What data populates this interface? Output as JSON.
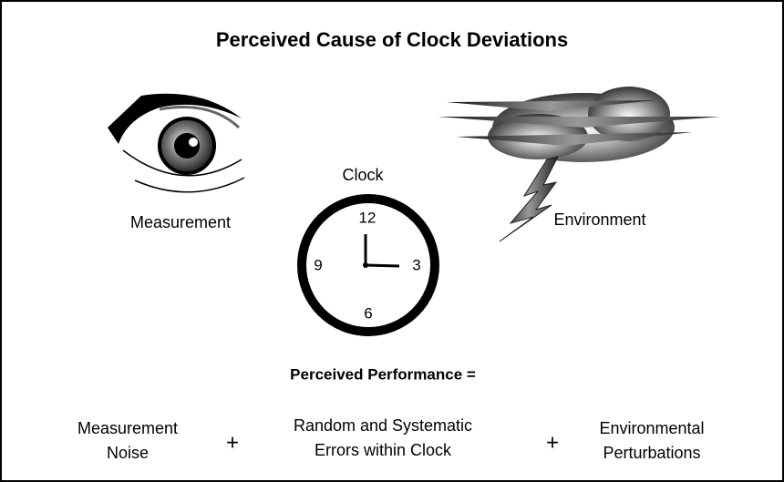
{
  "header": {
    "title": "Perceived Cause of Clock Deviations"
  },
  "nodes": [
    {
      "label": "Measurement"
    },
    {
      "label": "Clock"
    },
    {
      "label": "Environment"
    }
  ],
  "clock_face": {
    "numerals": [
      "12",
      "3",
      "6",
      "9"
    ]
  },
  "equation": {
    "heading": "Perceived Performance =",
    "terms": [
      {
        "lines": [
          "Measurement",
          "Noise"
        ]
      },
      {
        "lines": [
          "Random and Systematic",
          "Errors within Clock"
        ]
      },
      {
        "lines": [
          "Environmental",
          "Perturbations"
        ]
      }
    ],
    "operators": [
      "+",
      "+"
    ]
  }
}
